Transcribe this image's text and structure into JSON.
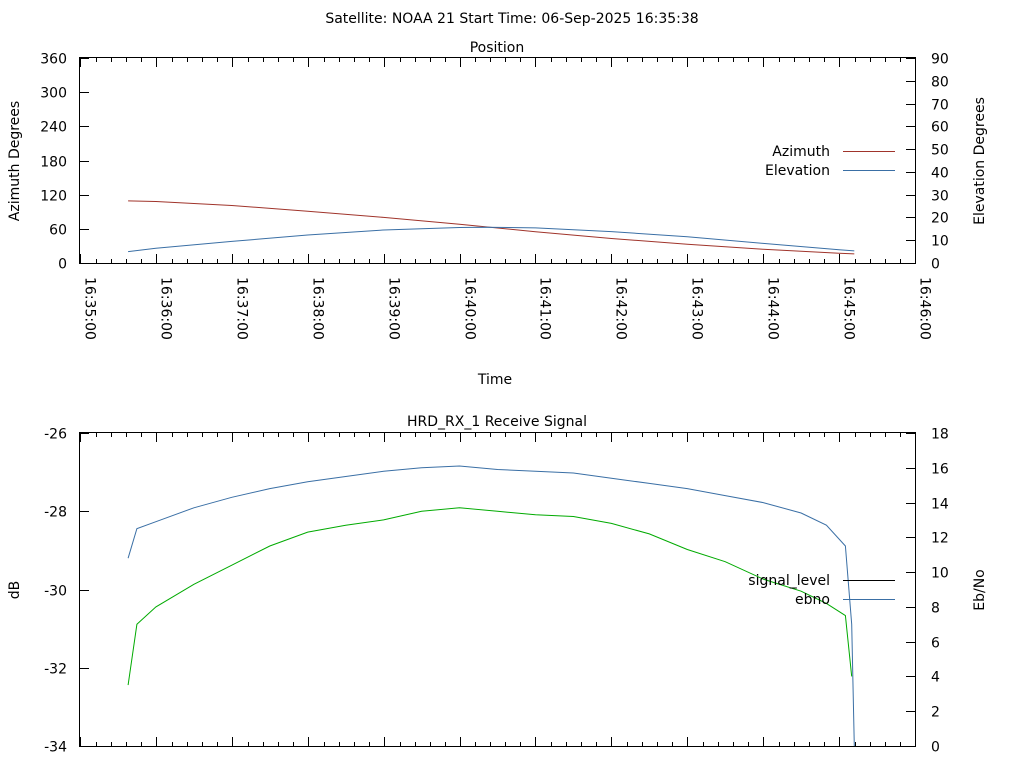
{
  "header": {
    "title": "Satellite: NOAA 21    Start Time: 06-Sep-2025 16:35:38"
  },
  "chart_data": [
    {
      "type": "line",
      "title": "Position",
      "xlabel": "Time",
      "ylabel": "Azimuth Degrees",
      "y2label": "Elevation Degrees",
      "x_ticks": [
        "16:35:00",
        "16:36:00",
        "16:37:00",
        "16:38:00",
        "16:39:00",
        "16:40:00",
        "16:41:00",
        "16:42:00",
        "16:43:00",
        "16:44:00",
        "16:45:00",
        "16:46:00"
      ],
      "x_minor_ticks_per_major": 4,
      "xlim": [
        "16:35:00",
        "16:46:00"
      ],
      "ylim": [
        0,
        360
      ],
      "y_ticks": [
        0,
        60,
        120,
        180,
        240,
        300,
        360
      ],
      "y2lim": [
        0,
        90
      ],
      "y2_ticks": [
        0,
        10,
        20,
        30,
        40,
        50,
        60,
        70,
        80,
        90
      ],
      "legend": "right",
      "series": [
        {
          "name": "Azimuth",
          "axis": "y1",
          "color": "#a0342b",
          "points": [
            [
              "16:35:38",
              109
            ],
            [
              "16:36:00",
              108
            ],
            [
              "16:37:00",
              101
            ],
            [
              "16:38:00",
              91
            ],
            [
              "16:39:00",
              80
            ],
            [
              "16:40:00",
              68
            ],
            [
              "16:41:00",
              55
            ],
            [
              "16:42:00",
              43
            ],
            [
              "16:43:00",
              33
            ],
            [
              "16:44:00",
              24
            ],
            [
              "16:45:00",
              17
            ],
            [
              "16:45:12",
              16
            ]
          ]
        },
        {
          "name": "Elevation",
          "axis": "y2",
          "color": "#3a6fa5",
          "points": [
            [
              "16:35:38",
              5
            ],
            [
              "16:36:00",
              6.5
            ],
            [
              "16:37:00",
              9.5
            ],
            [
              "16:38:00",
              12.3
            ],
            [
              "16:39:00",
              14.5
            ],
            [
              "16:40:00",
              15.6
            ],
            [
              "16:40:20",
              15.7
            ],
            [
              "16:41:00",
              15.4
            ],
            [
              "16:42:00",
              13.8
            ],
            [
              "16:43:00",
              11.5
            ],
            [
              "16:44:00",
              8.6
            ],
            [
              "16:45:00",
              5.8
            ],
            [
              "16:45:12",
              5.3
            ]
          ]
        }
      ]
    },
    {
      "type": "line",
      "title": "HRD_RX_1 Receive Signal",
      "xlabel": "",
      "ylabel": "dB",
      "y2label": "Eb/No",
      "x_ticks": [
        "16:35:00",
        "16:36:00",
        "16:37:00",
        "16:38:00",
        "16:39:00",
        "16:40:00",
        "16:41:00",
        "16:42:00",
        "16:43:00",
        "16:44:00",
        "16:45:00",
        "16:46:00"
      ],
      "x_minor_ticks_per_major": 4,
      "xlim": [
        "16:35:00",
        "16:46:00"
      ],
      "ylim": [
        -34,
        -26
      ],
      "y_ticks": [
        -34,
        -32,
        -30,
        -28,
        -26
      ],
      "y2lim": [
        0,
        18
      ],
      "y2_ticks": [
        0,
        2,
        4,
        6,
        8,
        10,
        12,
        14,
        16,
        18
      ],
      "legend": "right",
      "series": [
        {
          "name": "signal_level",
          "axis": "y1",
          "color": "#000000",
          "legend_only": true,
          "points": []
        },
        {
          "name": "ebno",
          "axis": "y2",
          "color": "#3a6fa5",
          "points": [
            [
              "16:35:38",
              10.8
            ],
            [
              "16:35:45",
              12.5
            ],
            [
              "16:36:00",
              12.9
            ],
            [
              "16:36:30",
              13.7
            ],
            [
              "16:37:00",
              14.3
            ],
            [
              "16:37:30",
              14.8
            ],
            [
              "16:38:00",
              15.2
            ],
            [
              "16:38:30",
              15.5
            ],
            [
              "16:39:00",
              15.8
            ],
            [
              "16:39:30",
              16.0
            ],
            [
              "16:40:00",
              16.1
            ],
            [
              "16:40:30",
              15.9
            ],
            [
              "16:41:00",
              15.8
            ],
            [
              "16:41:30",
              15.7
            ],
            [
              "16:42:00",
              15.4
            ],
            [
              "16:42:30",
              15.1
            ],
            [
              "16:43:00",
              14.8
            ],
            [
              "16:43:30",
              14.4
            ],
            [
              "16:44:00",
              14.0
            ],
            [
              "16:44:30",
              13.4
            ],
            [
              "16:44:50",
              12.7
            ],
            [
              "16:45:05",
              11.5
            ],
            [
              "16:45:10",
              7.0
            ],
            [
              "16:45:12",
              0
            ]
          ]
        },
        {
          "name": "",
          "axis": "y2",
          "color": "#00aa00",
          "points": [
            [
              "16:35:38",
              3.5
            ],
            [
              "16:35:45",
              7.0
            ],
            [
              "16:36:00",
              8.0
            ],
            [
              "16:36:30",
              9.3
            ],
            [
              "16:37:00",
              10.4
            ],
            [
              "16:37:30",
              11.5
            ],
            [
              "16:38:00",
              12.3
            ],
            [
              "16:38:30",
              12.7
            ],
            [
              "16:39:00",
              13.0
            ],
            [
              "16:39:30",
              13.5
            ],
            [
              "16:40:00",
              13.7
            ],
            [
              "16:40:30",
              13.5
            ],
            [
              "16:41:00",
              13.3
            ],
            [
              "16:41:30",
              13.2
            ],
            [
              "16:42:00",
              12.8
            ],
            [
              "16:42:30",
              12.2
            ],
            [
              "16:43:00",
              11.3
            ],
            [
              "16:43:30",
              10.6
            ],
            [
              "16:44:00",
              9.6
            ],
            [
              "16:44:30",
              8.9
            ],
            [
              "16:44:50",
              8.2
            ],
            [
              "16:45:05",
              7.5
            ],
            [
              "16:45:10",
              4.0
            ]
          ]
        }
      ]
    }
  ]
}
